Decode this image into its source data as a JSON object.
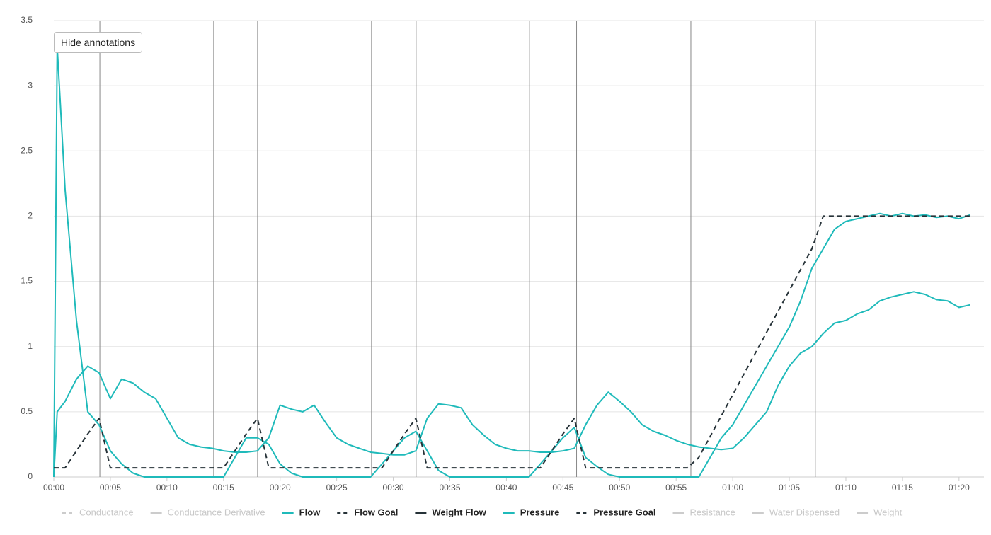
{
  "chart_data": {
    "type": "line",
    "button": "Hide annotations",
    "x": [
      0,
      0.3,
      1,
      2,
      3,
      4,
      5,
      6,
      7,
      8,
      9,
      10,
      11,
      12,
      13,
      14,
      15,
      16,
      17,
      18,
      19,
      20,
      21,
      22,
      23,
      24,
      25,
      26,
      27,
      28,
      29,
      30,
      31,
      32,
      33,
      34,
      35,
      36,
      37,
      38,
      39,
      40,
      41,
      42,
      43,
      44,
      45,
      46,
      47,
      48,
      49,
      50,
      51,
      52,
      53,
      54,
      55,
      56,
      57,
      58,
      59,
      60,
      61,
      62,
      63,
      64,
      65,
      66,
      67,
      68,
      69,
      70,
      71,
      72,
      73,
      74,
      75,
      76,
      77,
      78,
      79,
      80,
      81
    ],
    "xlim": [
      0,
      82.2
    ],
    "xticks": [
      {
        "value": 0,
        "label": "00:00"
      },
      {
        "value": 5,
        "label": "00:05"
      },
      {
        "value": 10,
        "label": "00:10"
      },
      {
        "value": 15,
        "label": "00:15"
      },
      {
        "value": 20,
        "label": "00:20"
      },
      {
        "value": 25,
        "label": "00:25"
      },
      {
        "value": 30,
        "label": "00:30"
      },
      {
        "value": 35,
        "label": "00:35"
      },
      {
        "value": 40,
        "label": "00:40"
      },
      {
        "value": 45,
        "label": "00:45"
      },
      {
        "value": 50,
        "label": "00:50"
      },
      {
        "value": 55,
        "label": "00:55"
      },
      {
        "value": 60,
        "label": "01:00"
      },
      {
        "value": 65,
        "label": "01:05"
      },
      {
        "value": 70,
        "label": "01:10"
      },
      {
        "value": 75,
        "label": "01:15"
      },
      {
        "value": 80,
        "label": "01:20"
      }
    ],
    "ylim": [
      0,
      3.5
    ],
    "yticks": [
      0,
      0.5,
      1,
      1.5,
      2,
      2.5,
      3,
      3.5
    ],
    "grid": true,
    "annotation_lines": [
      4.07,
      14.13,
      18.01,
      28.08,
      32.02,
      42.03,
      46.2,
      56.3,
      67.3
    ],
    "series": [
      {
        "name": "Conductance",
        "color": "#cccccc",
        "dash": true,
        "hidden": true
      },
      {
        "name": "Conductance Derivative",
        "color": "#cccccc",
        "dash": false,
        "hidden": true
      },
      {
        "name": "Flow",
        "color": "#1fbaba",
        "dash": false,
        "hidden": false,
        "values": [
          0,
          0.5,
          0.58,
          0.75,
          0.85,
          0.8,
          0.6,
          0.75,
          0.72,
          0.65,
          0.6,
          0.45,
          0.3,
          0.25,
          0.23,
          0.22,
          0.2,
          0.19,
          0.19,
          0.2,
          0.3,
          0.55,
          0.52,
          0.5,
          0.55,
          0.42,
          0.3,
          0.25,
          0.22,
          0.19,
          0.18,
          0.17,
          0.17,
          0.2,
          0.45,
          0.56,
          0.55,
          0.53,
          0.4,
          0.32,
          0.25,
          0.22,
          0.2,
          0.2,
          0.19,
          0.19,
          0.2,
          0.22,
          0.4,
          0.55,
          0.65,
          0.58,
          0.5,
          0.4,
          0.35,
          0.32,
          0.28,
          0.25,
          0.23,
          0.22,
          0.21,
          0.22,
          0.3,
          0.4,
          0.5,
          0.7,
          0.85,
          0.95,
          1.0,
          1.1,
          1.18,
          1.2,
          1.25,
          1.28,
          1.35,
          1.38,
          1.4,
          1.42,
          1.4,
          1.36,
          1.35,
          1.3,
          1.32
        ]
      },
      {
        "name": "Flow Goal",
        "color": "#263238",
        "dash": true,
        "hidden": false
      },
      {
        "name": "Weight Flow",
        "color": "#263238",
        "dash": false,
        "hidden": false
      },
      {
        "name": "Pressure",
        "color": "#1fbaba",
        "dash": false,
        "hidden": false,
        "values": [
          0,
          3.3,
          2.2,
          1.2,
          0.5,
          0.4,
          0.2,
          0.1,
          0.03,
          0,
          0,
          0,
          0,
          0,
          0,
          0,
          0,
          0.15,
          0.3,
          0.3,
          0.25,
          0.1,
          0.03,
          0,
          0,
          0,
          0,
          0,
          0,
          0,
          0.1,
          0.2,
          0.3,
          0.35,
          0.2,
          0.05,
          0,
          0,
          0,
          0,
          0,
          0,
          0,
          0,
          0.1,
          0.2,
          0.3,
          0.38,
          0.15,
          0.08,
          0.02,
          0,
          0,
          0,
          0,
          0,
          0,
          0,
          0,
          0.15,
          0.3,
          0.4,
          0.55,
          0.7,
          0.85,
          1.0,
          1.15,
          1.35,
          1.6,
          1.75,
          1.9,
          1.96,
          1.98,
          2.0,
          2.02,
          2.0,
          2.02,
          2.0,
          2.01,
          1.99,
          2.0,
          1.98,
          2.01
        ]
      },
      {
        "name": "Pressure Goal",
        "color": "#263238",
        "dash": true,
        "hidden": false,
        "values": [
          0.07,
          0.07,
          0.07,
          0.2,
          0.33,
          0.45,
          0.07,
          0.07,
          0.07,
          0.07,
          0.07,
          0.07,
          0.07,
          0.07,
          0.07,
          0.07,
          0.07,
          0.2,
          0.33,
          0.45,
          0.07,
          0.07,
          0.07,
          0.07,
          0.07,
          0.07,
          0.07,
          0.07,
          0.07,
          0.07,
          0.07,
          0.2,
          0.33,
          0.45,
          0.07,
          0.07,
          0.07,
          0.07,
          0.07,
          0.07,
          0.07,
          0.07,
          0.07,
          0.07,
          0.07,
          0.2,
          0.33,
          0.45,
          0.07,
          0.07,
          0.07,
          0.07,
          0.07,
          0.07,
          0.07,
          0.07,
          0.07,
          0.07,
          0.15,
          0.31,
          0.47,
          0.63,
          0.79,
          0.95,
          1.11,
          1.27,
          1.43,
          1.59,
          1.75,
          2,
          2,
          2,
          2,
          2,
          2,
          2,
          2,
          2,
          2,
          2,
          2,
          2,
          2
        ]
      },
      {
        "name": "Resistance",
        "color": "#cccccc",
        "dash": false,
        "hidden": true
      },
      {
        "name": "Water Dispensed",
        "color": "#cccccc",
        "dash": false,
        "hidden": true
      },
      {
        "name": "Weight",
        "color": "#cccccc",
        "dash": false,
        "hidden": true
      }
    ]
  }
}
